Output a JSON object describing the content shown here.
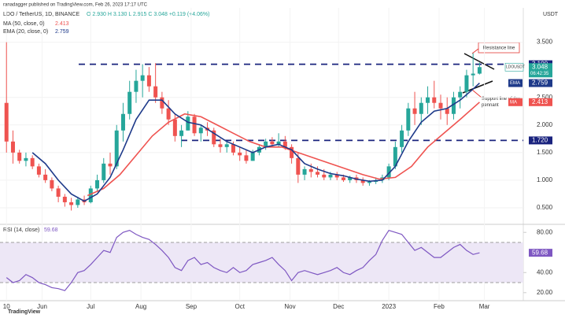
{
  "header": {
    "publisher": "ranadagger published on TradingView.com, Feb 26, 2023 17:17 UTC",
    "brand": "TradingView"
  },
  "chart_data": [
    {
      "type": "candlestick",
      "title": "LDO / TetherUS, 1D, BINANCE",
      "ohlc_text": "O 2.930 H 3.130 L 2.915 C 3.048 +0.119 (+4.06%)",
      "currency": "USDT",
      "symbol": "LDOUSDT",
      "countdown": "06:42:35",
      "up_color": "#26a69a",
      "down_color": "#ef5350",
      "x": [
        0,
        4,
        8,
        12,
        16,
        20,
        24,
        28,
        32,
        36,
        40,
        44,
        48,
        52,
        56,
        60,
        64,
        68,
        72,
        76,
        80,
        84,
        88,
        92,
        96,
        100,
        104,
        108,
        112,
        116,
        120,
        124,
        128,
        132,
        136,
        140,
        144,
        148,
        152,
        156,
        160,
        164,
        168,
        172,
        176,
        180,
        184,
        188,
        192,
        196,
        200,
        204,
        208,
        212,
        216,
        220,
        224,
        228,
        232,
        236,
        240,
        244,
        248,
        252,
        256,
        260,
        264,
        268,
        272,
        276,
        280,
        284,
        288,
        292
      ],
      "open": [
        2.4,
        1.7,
        1.5,
        1.35,
        1.4,
        1.25,
        1.1,
        1.0,
        0.85,
        0.7,
        0.6,
        0.55,
        0.65,
        0.6,
        0.85,
        1.0,
        1.3,
        1.25,
        1.9,
        2.2,
        2.6,
        2.8,
        2.9,
        2.7,
        2.5,
        2.3,
        2.1,
        1.8,
        1.9,
        2.15,
        1.85,
        1.95,
        1.9,
        1.65,
        1.6,
        1.65,
        1.5,
        1.45,
        1.35,
        1.5,
        1.6,
        1.7,
        1.65,
        1.7,
        1.6,
        1.4,
        1.1,
        1.2,
        1.15,
        1.1,
        1.05,
        1.1,
        1.05,
        1.0,
        1.05,
        1.0,
        0.95,
        0.97,
        1.0,
        1.05,
        1.25,
        1.6,
        1.9,
        2.3,
        2.2,
        2.4,
        2.5,
        2.4,
        2.3,
        2.2,
        2.5,
        2.6,
        2.9,
        2.93
      ],
      "high": [
        3.5,
        1.9,
        1.55,
        1.5,
        1.45,
        1.3,
        1.2,
        1.05,
        0.9,
        0.75,
        0.68,
        0.7,
        0.72,
        0.9,
        1.1,
        1.4,
        1.5,
        2.0,
        2.4,
        2.8,
        3.0,
        3.1,
        3.05,
        3.12,
        2.6,
        2.45,
        2.2,
        2.0,
        2.25,
        2.2,
        2.0,
        2.05,
        1.95,
        1.75,
        1.7,
        1.7,
        1.6,
        1.55,
        1.55,
        1.65,
        1.75,
        1.78,
        1.85,
        1.8,
        1.65,
        1.5,
        1.25,
        1.3,
        1.25,
        1.2,
        1.15,
        1.15,
        1.1,
        1.08,
        1.1,
        1.05,
        1.0,
        1.05,
        1.1,
        1.3,
        1.7,
        2.0,
        2.4,
        2.6,
        2.5,
        2.7,
        2.8,
        2.55,
        2.5,
        2.6,
        2.7,
        3.0,
        3.3,
        3.13
      ],
      "low": [
        1.5,
        1.3,
        1.3,
        1.25,
        1.2,
        1.05,
        0.95,
        0.8,
        0.6,
        0.52,
        0.45,
        0.5,
        0.55,
        0.58,
        0.8,
        0.95,
        1.1,
        1.2,
        1.7,
        2.1,
        2.4,
        2.5,
        2.6,
        2.4,
        2.2,
        2.0,
        1.7,
        1.6,
        1.9,
        1.8,
        1.7,
        1.8,
        1.6,
        1.5,
        1.5,
        1.45,
        1.35,
        1.3,
        1.35,
        1.45,
        1.55,
        1.6,
        1.6,
        1.55,
        1.3,
        0.95,
        1.0,
        1.05,
        1.05,
        1.0,
        1.0,
        1.0,
        0.97,
        0.95,
        0.95,
        0.9,
        0.9,
        0.93,
        0.95,
        1.0,
        1.2,
        1.5,
        1.8,
        2.0,
        2.0,
        2.2,
        2.3,
        2.1,
        2.0,
        2.1,
        2.3,
        2.5,
        2.7,
        2.915
      ],
      "close": [
        1.7,
        1.5,
        1.35,
        1.4,
        1.25,
        1.1,
        1.0,
        0.85,
        0.7,
        0.6,
        0.55,
        0.65,
        0.6,
        0.85,
        1.0,
        1.3,
        1.25,
        1.9,
        2.2,
        2.6,
        2.8,
        2.9,
        2.7,
        2.5,
        2.3,
        2.1,
        1.8,
        1.9,
        2.15,
        1.85,
        1.95,
        1.9,
        1.65,
        1.6,
        1.65,
        1.5,
        1.45,
        1.35,
        1.5,
        1.6,
        1.7,
        1.65,
        1.7,
        1.6,
        1.4,
        1.1,
        1.2,
        1.15,
        1.1,
        1.05,
        1.1,
        1.05,
        1.0,
        1.05,
        1.0,
        0.95,
        0.97,
        1.0,
        1.05,
        1.25,
        1.6,
        1.9,
        2.3,
        2.2,
        2.4,
        2.5,
        2.4,
        2.3,
        2.2,
        2.5,
        2.6,
        2.9,
        2.93,
        3.048
      ],
      "lines": [
        {
          "name": "MA (50, close, 0)",
          "tag": "MA",
          "color": "#ef5350",
          "x": [
            50,
            60,
            70,
            80,
            90,
            100,
            110,
            120,
            130,
            140,
            150,
            160,
            170,
            180,
            190,
            200,
            210,
            220,
            230,
            240,
            250,
            260,
            270,
            280,
            292
          ],
          "values": [
            0.72,
            0.85,
            1.1,
            1.45,
            1.8,
            2.05,
            2.2,
            2.15,
            2.0,
            1.85,
            1.7,
            1.6,
            1.6,
            1.5,
            1.4,
            1.3,
            1.2,
            1.1,
            1.02,
            1.05,
            1.25,
            1.6,
            1.85,
            2.1,
            2.413
          ]
        },
        {
          "name": "EMA (20, close, 0)",
          "tag": "EMA",
          "color": "#1e3a8a",
          "x": [
            16,
            24,
            32,
            40,
            48,
            56,
            64,
            72,
            80,
            88,
            96,
            104,
            112,
            120,
            128,
            136,
            144,
            152,
            160,
            168,
            176,
            184,
            192,
            200,
            208,
            216,
            224,
            232,
            240,
            248,
            256,
            264,
            272,
            280,
            288,
            292
          ],
          "values": [
            1.5,
            1.3,
            1.0,
            0.75,
            0.62,
            0.75,
            1.05,
            1.55,
            2.1,
            2.45,
            2.45,
            2.2,
            2.05,
            2.0,
            1.85,
            1.7,
            1.6,
            1.5,
            1.6,
            1.65,
            1.55,
            1.3,
            1.2,
            1.12,
            1.08,
            1.02,
            0.98,
            1.0,
            1.25,
            1.7,
            2.05,
            2.25,
            2.3,
            2.45,
            2.65,
            2.759
          ]
        }
      ],
      "levels": [
        {
          "value": 3.1,
          "label": "3.100"
        },
        {
          "value": 1.72,
          "label": "1.720"
        }
      ],
      "annotations": [
        "Resistance line",
        "Support line of the pennant"
      ],
      "xlim": [
        -4,
        319
      ],
      "xticks": [
        {
          "value": 0,
          "label": "10"
        },
        {
          "value": 22,
          "label": "Jun"
        },
        {
          "value": 52,
          "label": "Jul"
        },
        {
          "value": 83,
          "label": "Aug"
        },
        {
          "value": 114,
          "label": "Sep"
        },
        {
          "value": 144,
          "label": "Oct"
        },
        {
          "value": 175,
          "label": "Nov"
        },
        {
          "value": 205,
          "label": "Dec"
        },
        {
          "value": 236,
          "label": "2023"
        },
        {
          "value": 267,
          "label": "Feb"
        },
        {
          "value": 295,
          "label": "Mar"
        }
      ],
      "ylim": [
        0.2,
        4.05
      ],
      "yticks": [
        {
          "value": 0.5,
          "label": "0.500"
        },
        {
          "value": 1.0,
          "label": "1.000"
        },
        {
          "value": 1.5,
          "label": "1.500"
        },
        {
          "value": 2.0,
          "label": "2.000"
        },
        {
          "value": 2.5,
          "label": "2.500"
        },
        {
          "value": 3.5,
          "label": "3.500"
        }
      ]
    },
    {
      "type": "line",
      "title": "RSI (14, close)",
      "x": [
        0,
        4,
        8,
        12,
        16,
        20,
        24,
        28,
        32,
        36,
        40,
        44,
        48,
        52,
        56,
        60,
        64,
        68,
        72,
        76,
        80,
        84,
        88,
        92,
        96,
        100,
        104,
        108,
        112,
        116,
        120,
        124,
        128,
        132,
        136,
        140,
        144,
        148,
        152,
        156,
        160,
        164,
        168,
        172,
        176,
        180,
        184,
        188,
        192,
        196,
        200,
        204,
        208,
        212,
        216,
        220,
        224,
        228,
        232,
        236,
        240,
        244,
        248,
        252,
        256,
        260,
        264,
        268,
        272,
        276,
        280,
        284,
        288,
        292
      ],
      "series": [
        {
          "name": "RSI (14, close)",
          "color": "#7e57c2",
          "values": [
            35,
            30,
            32,
            38,
            35,
            30,
            28,
            25,
            24,
            22,
            30,
            40,
            42,
            48,
            55,
            62,
            60,
            75,
            80,
            82,
            78,
            75,
            73,
            68,
            62,
            55,
            45,
            42,
            52,
            55,
            48,
            50,
            45,
            42,
            40,
            45,
            40,
            42,
            48,
            50,
            52,
            55,
            48,
            42,
            32,
            40,
            42,
            40,
            38,
            40,
            42,
            45,
            40,
            38,
            42,
            45,
            52,
            58,
            72,
            82,
            80,
            78,
            70,
            62,
            65,
            60,
            55,
            55,
            60,
            65,
            68,
            62,
            58,
            59.68
          ]
        }
      ],
      "band": [
        30,
        70
      ],
      "band_color": "#ede7f6",
      "xlim": [
        -4,
        319
      ],
      "ylim": [
        12,
        88
      ],
      "yticks": [
        {
          "value": 80,
          "label": "80.00"
        },
        {
          "value": 40,
          "label": "40.00"
        },
        {
          "value": 20,
          "label": "20.00"
        }
      ]
    }
  ]
}
